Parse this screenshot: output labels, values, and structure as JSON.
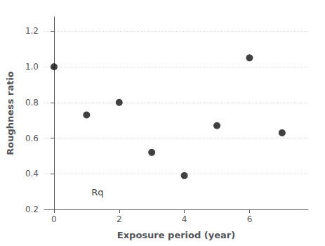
{
  "chart_data": {
    "type": "scatter",
    "xlabel": "Exposure period (year)",
    "ylabel": "Roughness ratio",
    "x": [
      0,
      1,
      2,
      3,
      4,
      5,
      6,
      7
    ],
    "values": [
      1.0,
      0.73,
      0.8,
      0.52,
      0.39,
      0.67,
      1.05,
      0.63
    ],
    "color": "#111111",
    "xlim": [
      -0.3,
      7.8
    ],
    "xticks": [
      0,
      2,
      4,
      6
    ],
    "ylim": [
      0.2,
      1.28
    ],
    "yticks": [
      0.2,
      0.4,
      0.6,
      0.8,
      {
        "value": 1.0,
        "label": "1.0"
      },
      1.2
    ],
    "grid": true,
    "annotations": [
      {
        "text": "Rq",
        "x": 1.15,
        "y": 0.295
      }
    ]
  }
}
